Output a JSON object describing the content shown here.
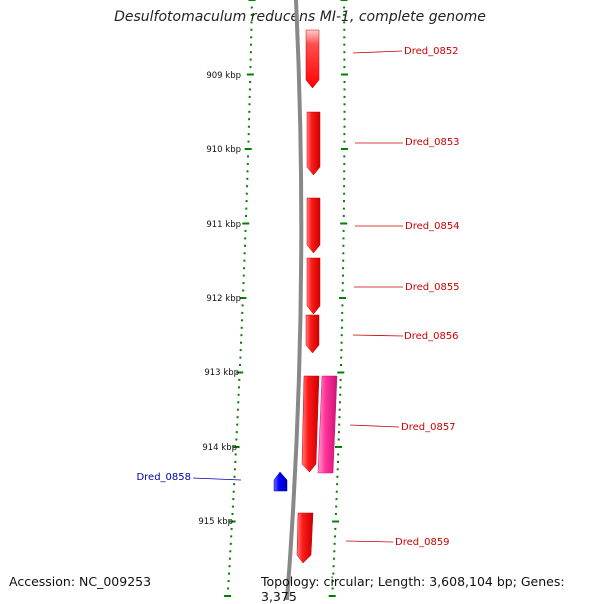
{
  "title": "Desulfotomaculum reducens MI-1, complete genome",
  "footer": {
    "accession": "Accession: NC_009253",
    "topology": "Topology: circular; Length: 3,608,104 bp; Genes: 3,375"
  },
  "colors": {
    "forward_gene": "#ff0000",
    "forward_gene_alt": "#ff3399",
    "reverse_gene": "#0000ff",
    "backbone": "#888888",
    "tick": "#008000",
    "forward_label": "#cc0000",
    "reverse_label": "#0000aa"
  },
  "ruler": {
    "unit": "kbp",
    "ticks": [
      {
        "kbp": 909,
        "label": "909 kbp"
      },
      {
        "kbp": 910,
        "label": "910 kbp"
      },
      {
        "kbp": 911,
        "label": "911 kbp"
      },
      {
        "kbp": 912,
        "label": "912 kbp"
      },
      {
        "kbp": 913,
        "label": "913 kbp"
      },
      {
        "kbp": 914,
        "label": "914 kbp"
      },
      {
        "kbp": 915,
        "label": "915 kbp"
      }
    ]
  },
  "genes": [
    {
      "id": "Dred_0852",
      "strand": "+"
    },
    {
      "id": "Dred_0853",
      "strand": "+"
    },
    {
      "id": "Dred_0854",
      "strand": "+"
    },
    {
      "id": "Dred_0855",
      "strand": "+"
    },
    {
      "id": "Dred_0856",
      "strand": "+"
    },
    {
      "id": "Dred_0857",
      "strand": "+"
    },
    {
      "id": "Dred_0858",
      "strand": "-"
    },
    {
      "id": "Dred_0859",
      "strand": "+"
    }
  ]
}
